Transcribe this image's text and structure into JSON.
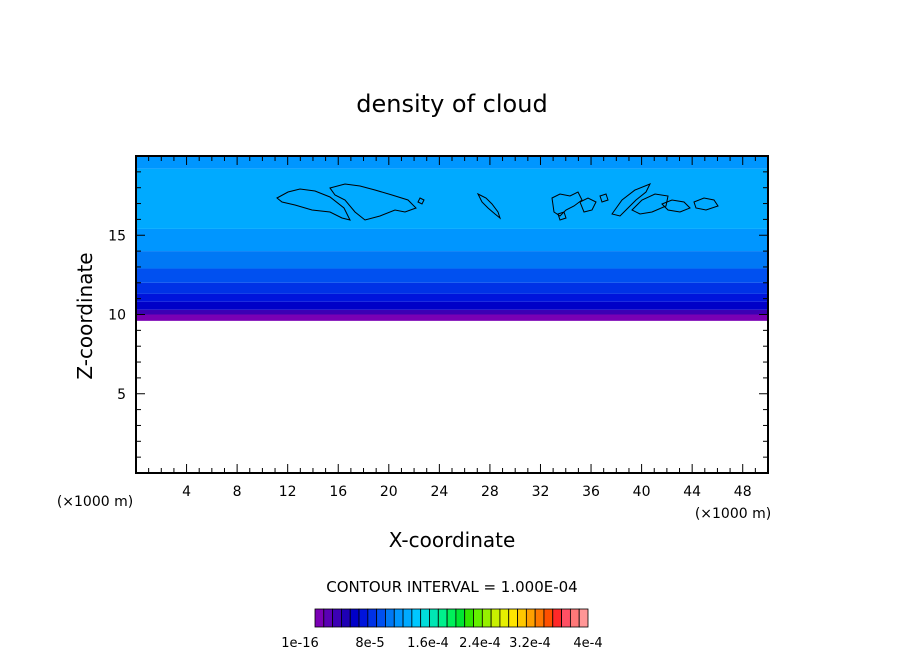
{
  "chart_data": {
    "type": "heatmap",
    "title": "density of cloud",
    "xlabel": "X-coordinate",
    "ylabel": "Z-coordinate",
    "x_unit_left": "(×1000 m)",
    "x_unit_right": "(×1000 m)",
    "xlim": [
      0,
      50
    ],
    "ylim": [
      0,
      20
    ],
    "x_ticks": [
      4,
      8,
      12,
      16,
      20,
      24,
      28,
      32,
      36,
      40,
      44,
      48
    ],
    "y_ticks": [
      5,
      10,
      15
    ],
    "bands": [
      {
        "z_bottom": 9.6,
        "z_top": 10.0,
        "color": "#7a00b4"
      },
      {
        "z_bottom": 10.0,
        "z_top": 10.3,
        "color": "#3c00b4"
      },
      {
        "z_bottom": 10.3,
        "z_top": 10.8,
        "color": "#0000c8"
      },
      {
        "z_bottom": 10.8,
        "z_top": 11.3,
        "color": "#0014dc"
      },
      {
        "z_bottom": 11.3,
        "z_top": 12.0,
        "color": "#0032e6"
      },
      {
        "z_bottom": 12.0,
        "z_top": 12.9,
        "color": "#0050f0"
      },
      {
        "z_bottom": 12.9,
        "z_top": 14.0,
        "color": "#0078f5"
      },
      {
        "z_bottom": 14.0,
        "z_top": 15.4,
        "color": "#0096ff"
      },
      {
        "z_bottom": 15.4,
        "z_top": 19.2,
        "color": "#00aaff"
      },
      {
        "z_bottom": 19.2,
        "z_top": 20.0,
        "color": "#0096ff"
      }
    ],
    "contour_interval_text": "CONTOUR INTERVAL = 1.000E-04",
    "colorbar": {
      "colors": [
        "#7a00b4",
        "#5a00b4",
        "#3c00b4",
        "#1e00b4",
        "#0000c8",
        "#0014dc",
        "#0032e6",
        "#0050f0",
        "#0078f5",
        "#0096ff",
        "#00aaff",
        "#00c8ff",
        "#00dcdc",
        "#00e6b4",
        "#00f08c",
        "#00f05a",
        "#00e632",
        "#32e600",
        "#64f000",
        "#96f000",
        "#c8f000",
        "#e6f000",
        "#ffe600",
        "#ffc800",
        "#ffa000",
        "#ff7800",
        "#ff5000",
        "#ff2828",
        "#ff5064",
        "#ff7878",
        "#ff9696"
      ],
      "labels": [
        "1e-16",
        "8e-5",
        "1.6e-4",
        "2.4e-4",
        "3.2e-4",
        "4e-4"
      ]
    }
  }
}
